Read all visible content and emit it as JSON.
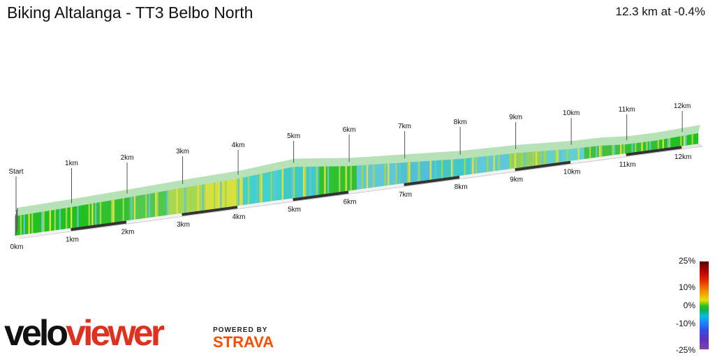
{
  "header": {
    "title": "Biking Altalanga - TT3 Belbo North",
    "summary": "12.3 km at -0.4%"
  },
  "chart_data": {
    "type": "area",
    "total_km": 12.3,
    "start_label": "Start",
    "upper_markers": [
      {
        "km": 0,
        "label": "Start"
      },
      {
        "km": 1,
        "label": "1km"
      },
      {
        "km": 2,
        "label": "2km"
      },
      {
        "km": 3,
        "label": "3km"
      },
      {
        "km": 4,
        "label": "4km"
      },
      {
        "km": 5,
        "label": "5km"
      },
      {
        "km": 6,
        "label": "6km"
      },
      {
        "km": 7,
        "label": "7km"
      },
      {
        "km": 8,
        "label": "8km"
      },
      {
        "km": 9,
        "label": "9km"
      },
      {
        "km": 10,
        "label": "10km"
      },
      {
        "km": 11,
        "label": "11km"
      },
      {
        "km": 12,
        "label": "12km"
      }
    ],
    "baseline_ticks": [
      "0km",
      "1km",
      "2km",
      "3km",
      "4km",
      "5km",
      "6km",
      "7km",
      "8km",
      "9km",
      "10km",
      "11km",
      "12km"
    ],
    "elevation_profile_km": [
      0,
      1,
      2,
      3,
      4,
      4.5,
      5,
      5.5,
      6,
      7,
      8,
      9,
      9.5,
      10,
      10.5,
      11,
      11.5,
      12,
      12.3
    ],
    "elevation_profile_rel": [
      0,
      0.5,
      1.2,
      2.0,
      2.6,
      3.4,
      4.2,
      3.0,
      1.8,
      0.4,
      -1.0,
      -1.6,
      -2.2,
      -2.8,
      -3.0,
      -3.8,
      -3.9,
      -3.5,
      -3.3
    ],
    "segment_colors": [
      "#20c020",
      "#20c020",
      "#30c030",
      "#50c850",
      "#a8d850",
      "#d8e040",
      "#40d0d0",
      "#40c8c8",
      "#30c030",
      "#60c8d8",
      "#50c0d8",
      "#40c8c8",
      "#60c8d8",
      "#90d060",
      "#60d0d0",
      "#40c040",
      "#30c030",
      "#20c020"
    ]
  },
  "legend": {
    "labels": [
      "25%",
      "10%",
      "0%",
      "-10%",
      "-25%"
    ],
    "values": [
      25,
      10,
      0,
      -10,
      -25
    ]
  },
  "branding": {
    "velo": "velo",
    "viewer": "viewer",
    "powered_by": "POWERED BY",
    "strava": "STRAVA"
  }
}
